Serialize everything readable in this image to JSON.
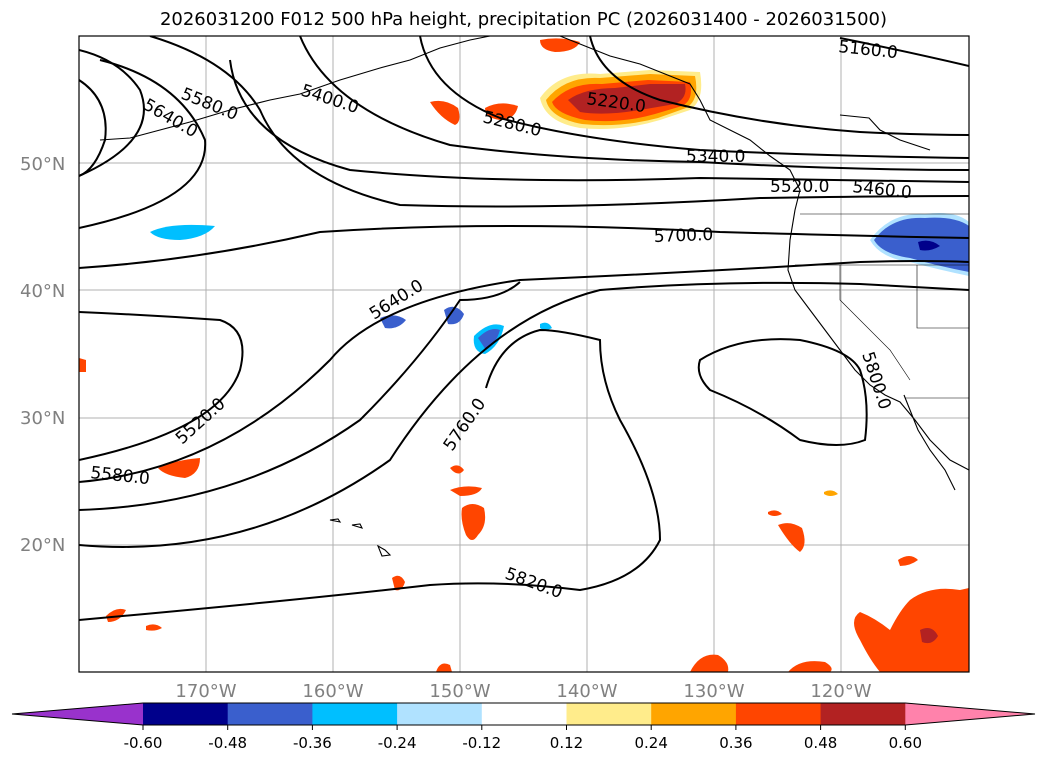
{
  "title": "2026031200 F012 500 hPa height, precipitation PC (2026031400 - 2026031500)",
  "map": {
    "lon_range": [
      -180,
      -110
    ],
    "lat_range": [
      10,
      60
    ],
    "lat_labels": [
      "50°N",
      "40°N",
      "30°N",
      "20°N"
    ],
    "lon_labels": [
      "170°W",
      "160°W",
      "150°W",
      "140°W",
      "130°W",
      "120°W"
    ],
    "contour_labels": [
      "5160.0",
      "5220.0",
      "5280.0",
      "5340.0",
      "5400.0",
      "5460.0",
      "5520.0",
      "5520.0",
      "5580.0",
      "5580.0",
      "5640.0",
      "5640.0",
      "5700.0",
      "5760.0",
      "5800.0",
      "5820.0"
    ],
    "grid": true
  },
  "colorbar": {
    "ticks": [
      "-0.60",
      "-0.48",
      "-0.36",
      "-0.24",
      "-0.12",
      "0.12",
      "0.24",
      "0.36",
      "0.48",
      "0.60"
    ],
    "colors": [
      "#9932cc",
      "#00008b",
      "#3a5fcd",
      "#00bfff",
      "#b0e2ff",
      "#ffffff",
      "#ffec8b",
      "#ffa500",
      "#ff4500",
      "#b22222",
      "#ff82ab"
    ]
  }
}
